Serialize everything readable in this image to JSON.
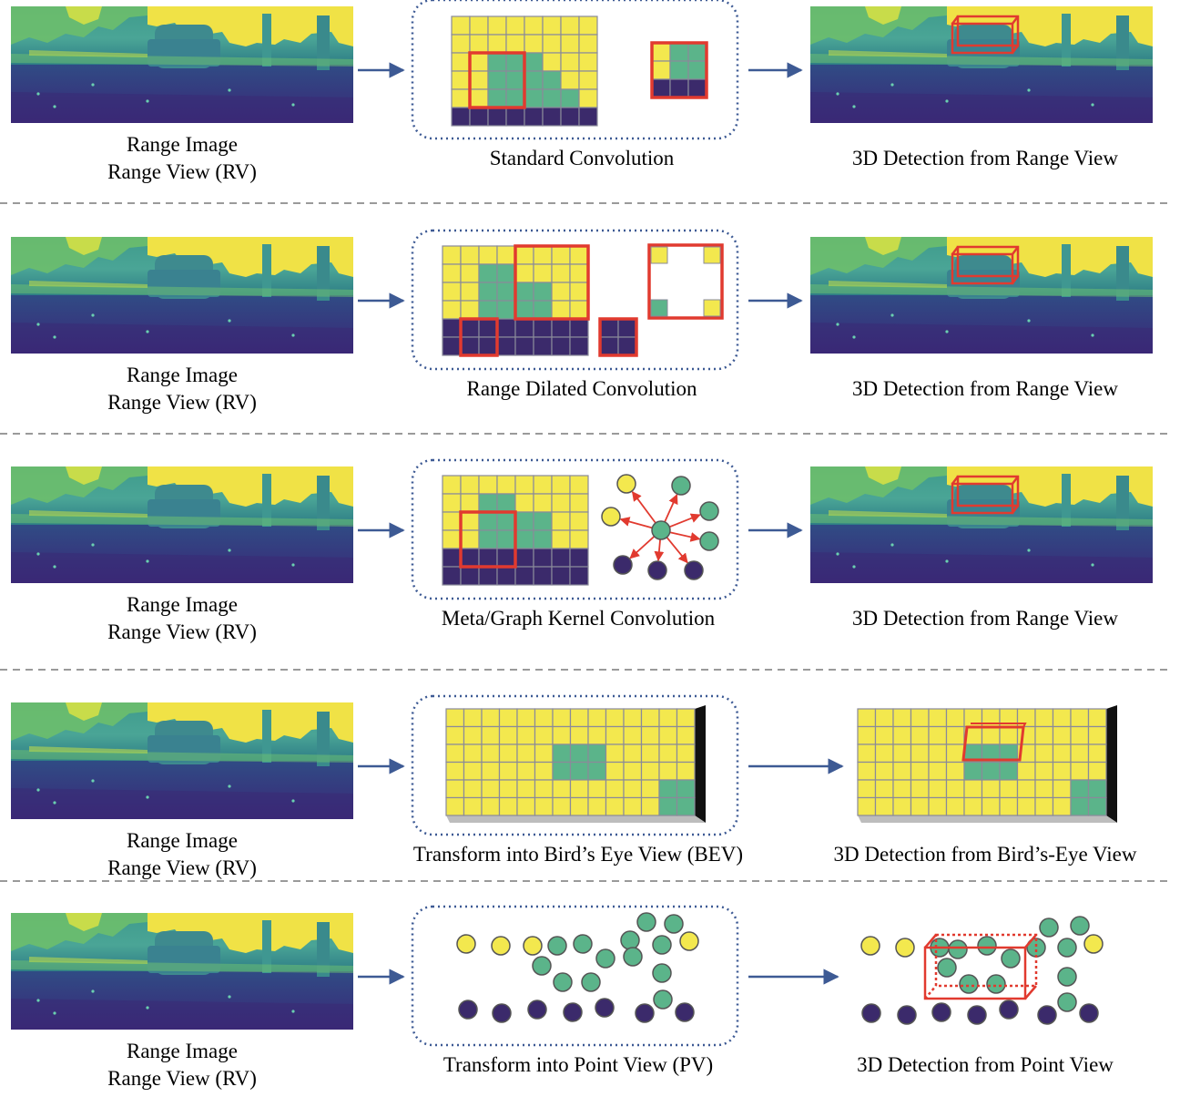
{
  "colors": {
    "yellow": "#f3e84e",
    "teal": "#5bb48a",
    "navy": "#3b2a6b",
    "grid_line": "#8a8a9a",
    "kernel": "#e13a2f",
    "arrow": "#3d5a94",
    "panel_border": "#3d5a94",
    "divider": "#9a9a9a"
  },
  "rows": [
    {
      "input_label_1": "Range Image",
      "input_label_2": "Range View (RV)",
      "method": "Standard Convolution",
      "output": "3D Detection from Range View"
    },
    {
      "input_label_1": "Range Image",
      "input_label_2": "Range View (RV)",
      "method": "Range Dilated Convolution",
      "output": "3D Detection from Range View"
    },
    {
      "input_label_1": "Range Image",
      "input_label_2": "Range View (RV)",
      "method": "Meta/Graph Kernel Convolution",
      "output": "3D Detection from Range View"
    },
    {
      "input_label_1": "Range Image",
      "input_label_2": "Range View (RV)",
      "method": "Transform into Bird’s Eye View (BEV)",
      "output": "3D Detection from Bird’s-Eye View"
    },
    {
      "input_label_1": "Range Image",
      "input_label_2": "Range View (RV)",
      "method": "Transform into Point View (PV)",
      "output": "3D Detection from Point View"
    }
  ]
}
